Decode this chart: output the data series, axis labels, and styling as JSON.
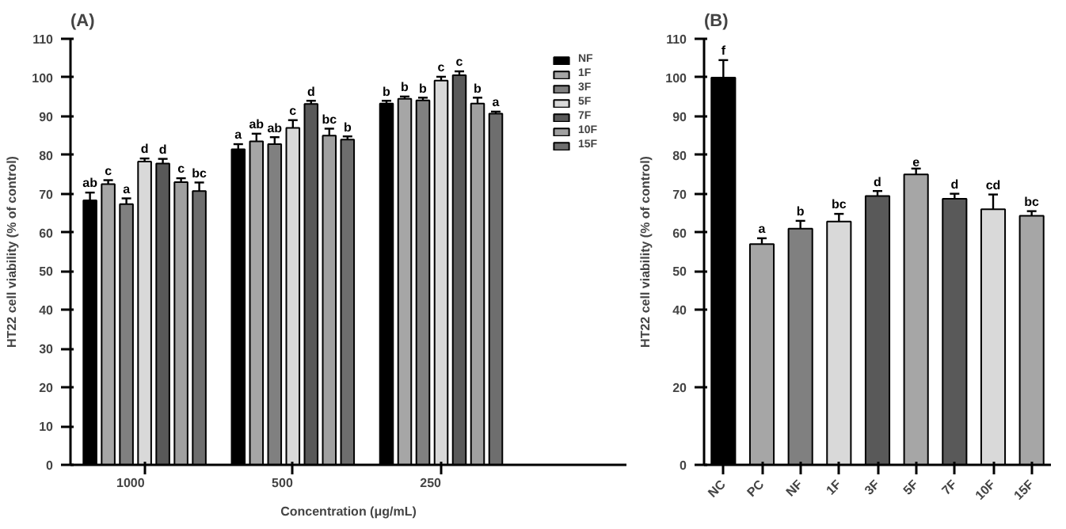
{
  "chart_data": [
    {
      "type": "bar",
      "title": "(A)",
      "xlabel": "Concentration (μg/mL)",
      "ylabel": "HT22 cell viability (% of control)",
      "categories": [
        "1000",
        "500",
        "250"
      ],
      "ylim": [
        0,
        110
      ],
      "yticks": [
        0,
        10,
        20,
        30,
        40,
        50,
        60,
        70,
        80,
        90,
        100,
        110
      ],
      "legend": "top right",
      "series": [
        {
          "name": "NF",
          "color": "#000000",
          "values": [
            68.3,
            81.5,
            93.3
          ],
          "errors": [
            2,
            1.3,
            0.7
          ],
          "value_labels": [
            "ab",
            "a",
            "b"
          ]
        },
        {
          "name": "1F",
          "color": "#a6a6a6",
          "values": [
            72.5,
            83.5,
            94.5
          ],
          "errors": [
            1,
            2,
            0.6
          ],
          "value_labels": [
            "c",
            "ab",
            "b"
          ]
        },
        {
          "name": "3F",
          "color": "#808080",
          "values": [
            67.3,
            82.8,
            94.1
          ],
          "errors": [
            1.5,
            1.8,
            0.7
          ],
          "value_labels": [
            "a",
            "ab",
            "b"
          ]
        },
        {
          "name": "5F",
          "color": "#d9d9d9",
          "values": [
            78.3,
            87,
            99.2
          ],
          "errors": [
            0.8,
            2,
            1
          ],
          "value_labels": [
            "d",
            "c",
            "c"
          ]
        },
        {
          "name": "7F",
          "color": "#595959",
          "values": [
            77.8,
            93.2,
            100.6
          ],
          "errors": [
            1.2,
            0.8,
            1
          ],
          "value_labels": [
            "d",
            "d",
            "c"
          ]
        },
        {
          "name": "10F",
          "color": "#a0a0a0",
          "values": [
            73,
            85,
            93.3
          ],
          "errors": [
            1,
            1.8,
            1.5
          ],
          "value_labels": [
            "c",
            "bc",
            "b"
          ]
        },
        {
          "name": "15F",
          "color": "#6e6e6e",
          "values": [
            70.7,
            84,
            90.7
          ],
          "errors": [
            2.2,
            0.8,
            0.5
          ],
          "value_labels": [
            "bc",
            "b",
            "a"
          ]
        }
      ]
    },
    {
      "type": "bar",
      "title": "(B)",
      "ylabel": "HT22 cell viability (% of control)",
      "categories": [
        "NC",
        "PC",
        "NF",
        "1F",
        "3F",
        "5F",
        "7F",
        "10F",
        "15F"
      ],
      "ylim": [
        0,
        110
      ],
      "yticks": [
        0,
        20,
        40,
        50,
        60,
        70,
        80,
        90,
        100,
        110
      ],
      "values": [
        100,
        57,
        61,
        62.8,
        69.4,
        75,
        68.7,
        66,
        64.3
      ],
      "errors": [
        4.5,
        1.5,
        2,
        2,
        1.3,
        1.5,
        1.3,
        3.8,
        1.2
      ],
      "value_labels": [
        "f",
        "a",
        "b",
        "bc",
        "d",
        "e",
        "d",
        "cd",
        "bc"
      ],
      "colors": [
        "#000000",
        "#a6a6a6",
        "#808080",
        "#d9d9d9",
        "#595959",
        "#a6a6a6",
        "#595959",
        "#d9d9d9",
        "#a6a6a6"
      ]
    }
  ]
}
